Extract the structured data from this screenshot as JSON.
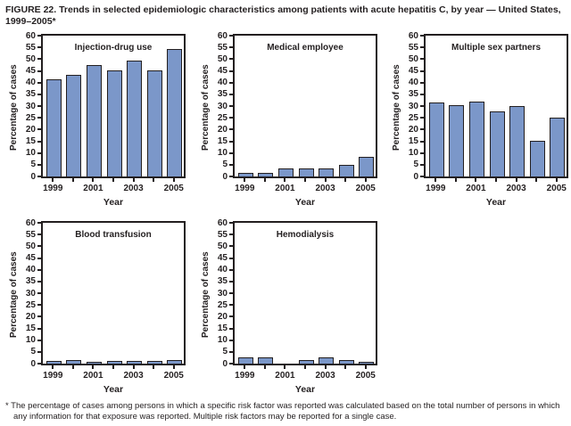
{
  "title": "FIGURE 22. Trends in selected epidemiologic characteristics among patients with acute hepatitis C, by year — United States, 1999–2005*",
  "footnote": "* The percentage of cases among persons in which a specific risk factor was reported was calculated based on the total number of persons in which any information for that exposure was reported. Multiple risk factors may be reported for a single case.",
  "colors": {
    "bar_fill": "#7b97c9",
    "bar_border": "#231f20",
    "axis": "#231f20",
    "text": "#231f20"
  },
  "chart_data": [
    {
      "type": "bar",
      "title": "Injection-drug use",
      "categories": [
        "1999",
        "2000",
        "2001",
        "2002",
        "2003",
        "2004",
        "2005"
      ],
      "values": [
        41,
        43,
        47,
        45,
        49,
        45,
        54
      ],
      "xlabel": "Year",
      "ylabel": "Percentage of cases",
      "ylim": [
        0,
        60
      ],
      "ytick_step": 5,
      "xtick_labels_shown": [
        "1999",
        "2001",
        "2003",
        "2005"
      ],
      "grid": false,
      "legend": "none"
    },
    {
      "type": "bar",
      "title": "Medical employee",
      "categories": [
        "1999",
        "2000",
        "2001",
        "2002",
        "2003",
        "2004",
        "2005"
      ],
      "values": [
        1,
        1,
        3,
        3,
        3,
        4.5,
        8
      ],
      "xlabel": "Year",
      "ylabel": "Percentage of cases",
      "ylim": [
        0,
        60
      ],
      "ytick_step": 5,
      "xtick_labels_shown": [
        "1999",
        "2001",
        "2003",
        "2005"
      ],
      "grid": false,
      "legend": "none"
    },
    {
      "type": "bar",
      "title": "Multiple sex partners",
      "categories": [
        "1999",
        "2000",
        "2001",
        "2002",
        "2003",
        "2004",
        "2005"
      ],
      "values": [
        31,
        30,
        31.5,
        27.5,
        29.5,
        15,
        24.5
      ],
      "xlabel": "Year",
      "ylabel": "Percentage of cases",
      "ylim": [
        0,
        60
      ],
      "ytick_step": 5,
      "xtick_labels_shown": [
        "1999",
        "2001",
        "2003",
        "2005"
      ],
      "grid": false,
      "legend": "none"
    },
    {
      "type": "bar",
      "title": "Blood transfusion",
      "categories": [
        "1999",
        "2000",
        "2001",
        "2002",
        "2003",
        "2004",
        "2005"
      ],
      "values": [
        0.8,
        1.2,
        0.3,
        0.8,
        0.9,
        0.9,
        1.3
      ],
      "xlabel": "Year",
      "ylabel": "Percentage of cases",
      "ylim": [
        0,
        60
      ],
      "ytick_step": 5,
      "xtick_labels_shown": [
        "1999",
        "2001",
        "2003",
        "2005"
      ],
      "grid": false,
      "legend": "none"
    },
    {
      "type": "bar",
      "title": "Hemodialysis",
      "categories": [
        "1999",
        "2000",
        "2001",
        "2002",
        "2003",
        "2004",
        "2005"
      ],
      "values": [
        2.3,
        2.2,
        0,
        1.2,
        2.2,
        1.3,
        0.5
      ],
      "xlabel": "Year",
      "ylabel": "Percentage of cases",
      "ylim": [
        0,
        60
      ],
      "ytick_step": 5,
      "xtick_labels_shown": [
        "1999",
        "2001",
        "2003",
        "2005"
      ],
      "grid": false,
      "legend": "none"
    }
  ]
}
